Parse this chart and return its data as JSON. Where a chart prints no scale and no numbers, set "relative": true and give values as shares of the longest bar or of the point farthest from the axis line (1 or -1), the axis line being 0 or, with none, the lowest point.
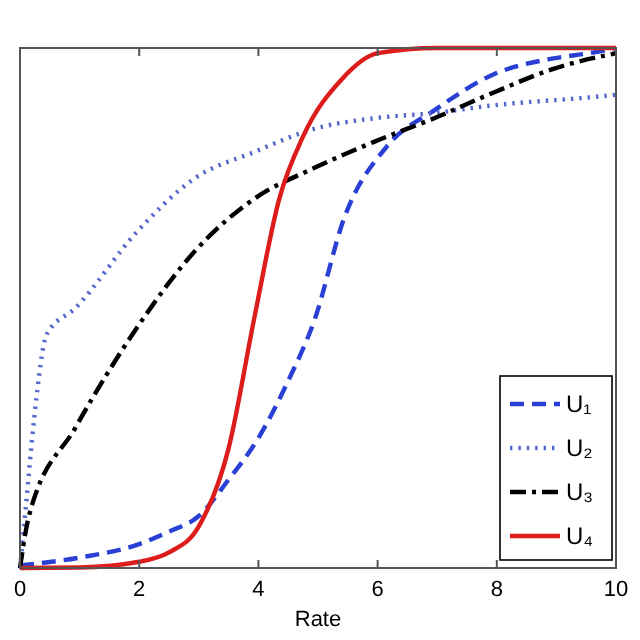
{
  "chart_data": {
    "type": "line",
    "xlabel": "Rate",
    "relative": true,
    "xlim": [
      0,
      10
    ],
    "xticks": [
      0,
      2,
      4,
      6,
      8,
      10
    ],
    "legend": "bottom right",
    "series": [
      {
        "name": "U₁",
        "color": "#2a3fd4",
        "line_style": "dashed",
        "x": [
          0,
          1,
          2,
          2.5,
          3,
          3.5,
          4,
          4.5,
          4.95,
          5.43,
          6.15,
          6.95,
          7.96,
          8.95,
          9.55,
          10
        ],
        "values": [
          0.005,
          0.02,
          0.046,
          0.07,
          0.1,
          0.17,
          0.25,
          0.36,
          0.48,
          0.67,
          0.81,
          0.88,
          0.95,
          0.98,
          0.99,
          1
        ]
      },
      {
        "name": "U₂",
        "color": "#5566cc",
        "line_style": "dotted",
        "x": [
          0,
          0.1,
          0.24,
          0.45,
          0.93,
          1.95,
          2.94,
          3.93,
          4.95,
          5.95,
          6.95,
          7.96,
          9.55,
          10
        ],
        "values": [
          0,
          0.12,
          0.29,
          0.45,
          0.5,
          0.645,
          0.75,
          0.8,
          0.845,
          0.865,
          0.875,
          0.89,
          0.905,
          0.91
        ]
      },
      {
        "name": "U₃",
        "color": "#000000",
        "line_style": "dashdot",
        "x": [
          0,
          0.15,
          0.93,
          1.95,
          2.94,
          3.93,
          4.95,
          5.95,
          6.95,
          7.96,
          8.95,
          10
        ],
        "values": [
          0,
          0.1,
          0.27,
          0.46,
          0.61,
          0.71,
          0.77,
          0.82,
          0.865,
          0.915,
          0.96,
          0.99
        ]
      },
      {
        "name": "U₄",
        "color": "#dd1c1c",
        "line_style": "solid",
        "x": [
          0,
          1,
          2,
          2.5,
          3,
          3.5,
          3.93,
          4.35,
          4.75,
          5.4,
          6,
          7,
          10
        ],
        "values": [
          0,
          0.001,
          0.012,
          0.03,
          0.08,
          0.23,
          0.48,
          0.71,
          0.83,
          0.94,
          0.99,
          1,
          1
        ]
      }
    ]
  }
}
